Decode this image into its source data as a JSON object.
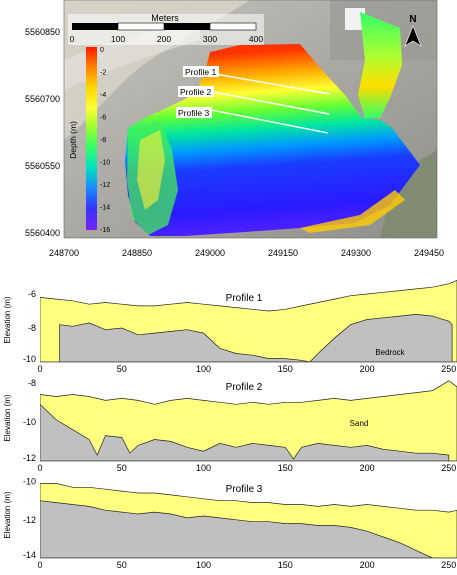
{
  "map": {
    "y_ticks": [
      "5560850",
      "5560700",
      "5560550",
      "5560400"
    ],
    "x_ticks": [
      "248700",
      "248850",
      "249000",
      "249150",
      "249300",
      "249450"
    ],
    "scale_bar": {
      "title": "Meters",
      "ticks": [
        "0",
        "100",
        "200",
        "300",
        "400"
      ]
    },
    "north_label": "N",
    "colorbar": {
      "title": "Depth (m)",
      "ticks": [
        "0",
        "-2",
        "-4",
        "-6",
        "-8",
        "-10",
        "-12",
        "-14",
        "-16"
      ],
      "colors": [
        "#ff1a00",
        "#ff8000",
        "#ffd700",
        "#ffff33",
        "#99ff33",
        "#33ff66",
        "#00e0c0",
        "#1a8cff",
        "#3333ff",
        "#7722ff"
      ]
    },
    "profile_lines": [
      "Profile 1",
      "Profile 2",
      "Profile 3"
    ]
  },
  "profiles_y_label": "Elevation (m)",
  "profile_x_ticks": [
    "0",
    "50",
    "100",
    "150",
    "200",
    "250"
  ],
  "colors": {
    "sand": "#ffff80",
    "bedrock": "#c0c0c0",
    "profile_line": "#ffffff"
  },
  "chart_data": [
    {
      "type": "area",
      "title": "Profile 1",
      "annotation": "Bedrock",
      "ylabel": "Elevation (m)",
      "xlim": [
        0,
        255
      ],
      "ylim": [
        -10,
        -5
      ],
      "yticks": [
        -6,
        -8,
        -10
      ],
      "series": [
        {
          "x": [
            0,
            10,
            20,
            30,
            40,
            50,
            60,
            70,
            80,
            90,
            100,
            110,
            120,
            130,
            140,
            150,
            160,
            170,
            180,
            190,
            200,
            210,
            220,
            230,
            240,
            250,
            255
          ],
          "values": [
            -6.2,
            -6.3,
            -6.4,
            -6.6,
            -6.5,
            -6.6,
            -6.7,
            -6.7,
            -6.6,
            -6.5,
            -6.6,
            -6.7,
            -6.8,
            -6.9,
            -7.0,
            -6.9,
            -6.7,
            -6.5,
            -6.3,
            -6.1,
            -6.0,
            -5.9,
            -5.8,
            -5.7,
            -5.6,
            -5.4,
            -5.2
          ]
        },
        {
          "x": [
            12,
            20,
            30,
            40,
            50,
            60,
            70,
            80,
            90,
            100,
            110,
            120,
            130,
            140,
            150,
            160,
            165,
            170,
            180,
            190,
            200,
            210,
            220,
            230,
            240,
            250,
            252
          ],
          "values": [
            -7.8,
            -7.9,
            -7.7,
            -8.1,
            -8.0,
            -8.4,
            -8.3,
            -8.2,
            -8.1,
            -8.3,
            -9.2,
            -9.5,
            -9.6,
            -9.8,
            -9.8,
            -9.9,
            -10.0,
            -9.5,
            -8.6,
            -7.8,
            -7.5,
            -7.4,
            -7.3,
            -7.2,
            -7.3,
            -7.6,
            -7.8
          ]
        }
      ]
    },
    {
      "type": "area",
      "title": "Profile 2",
      "annotation": "Sand",
      "ylabel": "Elevation (m)",
      "xlim": [
        0,
        255
      ],
      "ylim": [
        -12,
        -7.5
      ],
      "yticks": [
        -8,
        -10,
        -12
      ],
      "series": [
        {
          "x": [
            0,
            10,
            20,
            30,
            40,
            50,
            60,
            70,
            80,
            90,
            100,
            110,
            120,
            130,
            140,
            150,
            160,
            170,
            180,
            190,
            200,
            210,
            220,
            230,
            240,
            250,
            255
          ],
          "values": [
            -8.6,
            -8.7,
            -8.6,
            -8.7,
            -8.9,
            -8.8,
            -8.9,
            -9.1,
            -8.9,
            -8.8,
            -8.9,
            -9.0,
            -9.1,
            -9.0,
            -9.1,
            -9.0,
            -9.0,
            -8.9,
            -8.8,
            -8.9,
            -8.8,
            -8.7,
            -8.6,
            -8.5,
            -8.4,
            -7.9,
            -8.2
          ]
        },
        {
          "x": [
            0,
            10,
            20,
            30,
            35,
            40,
            50,
            55,
            60,
            70,
            80,
            90,
            100,
            110,
            120,
            130,
            140,
            150,
            155,
            160,
            170,
            180,
            190,
            200,
            210,
            220,
            230,
            240,
            250
          ],
          "values": [
            -9.1,
            -9.9,
            -10.4,
            -10.9,
            -11.7,
            -10.7,
            -10.8,
            -11.6,
            -11.2,
            -10.9,
            -11.0,
            -11.3,
            -11.5,
            -11.1,
            -11.3,
            -11.1,
            -11.2,
            -11.3,
            -11.9,
            -11.3,
            -11.1,
            -11.2,
            -11.3,
            -11.2,
            -11.4,
            -11.5,
            -11.6,
            -11.6,
            -11.7
          ]
        }
      ]
    },
    {
      "type": "area",
      "title": "Profile 3",
      "ylabel": "Elevation (m)",
      "xlim": [
        0,
        255
      ],
      "ylim": [
        -14,
        -9.5
      ],
      "yticks": [
        -10,
        -12,
        -14
      ],
      "series": [
        {
          "x": [
            0,
            10,
            20,
            30,
            40,
            50,
            60,
            70,
            80,
            90,
            100,
            110,
            120,
            130,
            140,
            150,
            160,
            170,
            180,
            190,
            200,
            210,
            220,
            230,
            240,
            250,
            255
          ],
          "values": [
            -10.1,
            -10.1,
            -10.3,
            -10.3,
            -10.4,
            -10.5,
            -10.6,
            -10.6,
            -10.7,
            -10.8,
            -10.9,
            -11.0,
            -11.0,
            -11.1,
            -11.1,
            -11.2,
            -11.2,
            -11.3,
            -11.2,
            -11.3,
            -11.2,
            -11.3,
            -11.4,
            -11.5,
            -11.5,
            -11.6,
            -11.5
          ]
        },
        {
          "x": [
            0,
            10,
            20,
            30,
            40,
            50,
            60,
            70,
            80,
            90,
            100,
            110,
            120,
            130,
            140,
            150,
            160,
            170,
            180,
            190,
            200,
            210,
            220,
            230,
            240
          ],
          "values": [
            -11.0,
            -11.1,
            -11.2,
            -11.3,
            -11.5,
            -11.6,
            -11.7,
            -11.6,
            -11.7,
            -11.9,
            -11.8,
            -11.9,
            -12.0,
            -12.1,
            -12.1,
            -12.2,
            -12.2,
            -12.3,
            -12.3,
            -12.4,
            -12.6,
            -12.9,
            -13.2,
            -13.6,
            -14.0
          ]
        }
      ]
    }
  ]
}
